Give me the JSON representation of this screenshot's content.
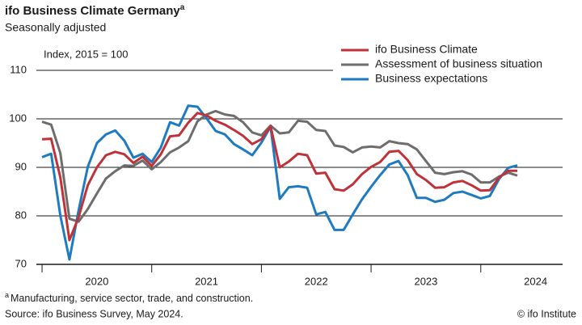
{
  "chart_data": {
    "type": "line",
    "title": "ifo Business Climate Germany",
    "footnote_marker": "a",
    "subtitle": "Seasonally adjusted",
    "y_label": "Index, 2015 = 100",
    "footnote": "Manufacturing, service sector, trade, and construction.",
    "source": "Source: ifo Business Survey, May 2024.",
    "credit": "© ifo Institute",
    "x": [
      2020,
      2020.083,
      2020.167,
      2020.25,
      2020.333,
      2020.417,
      2020.5,
      2020.583,
      2020.667,
      2020.75,
      2020.833,
      2020.917,
      2021,
      2021.083,
      2021.167,
      2021.25,
      2021.333,
      2021.417,
      2021.5,
      2021.583,
      2021.667,
      2021.75,
      2021.833,
      2021.917,
      2022,
      2022.083,
      2022.167,
      2022.25,
      2022.333,
      2022.417,
      2022.5,
      2022.583,
      2022.667,
      2022.75,
      2022.833,
      2022.917,
      2023,
      2023.083,
      2023.167,
      2023.25,
      2023.333,
      2023.417,
      2023.5,
      2023.583,
      2023.667,
      2023.75,
      2023.833,
      2023.917,
      2024,
      2024.083,
      2024.167,
      2024.25,
      2024.333
    ],
    "series": [
      {
        "name": "ifo Business Climate",
        "color": "#c0323a",
        "values": [
          95.8,
          95.9,
          87.9,
          75.0,
          79.7,
          86.3,
          90.0,
          92.5,
          93.2,
          92.7,
          90.9,
          92.2,
          90.3,
          92.7,
          96.4,
          96.6,
          99.2,
          101.2,
          100.7,
          99.6,
          98.8,
          97.7,
          96.5,
          94.8,
          95.8,
          98.5,
          90.0,
          91.2,
          92.8,
          92.5,
          88.7,
          88.9,
          85.5,
          85.2,
          86.5,
          88.6,
          90.1,
          91.1,
          93.2,
          93.4,
          91.5,
          88.6,
          87.4,
          85.8,
          85.9,
          86.9,
          87.2,
          86.3,
          85.2,
          85.3,
          87.9,
          89.3,
          89.3
        ]
      },
      {
        "name": "Assessment of business situation",
        "color": "#6d6d6d",
        "values": [
          99.4,
          98.8,
          92.9,
          79.4,
          78.8,
          81.4,
          84.6,
          87.7,
          89.2,
          90.4,
          90.3,
          91.4,
          89.6,
          91.1,
          93.1,
          94.1,
          95.4,
          99.5,
          100.9,
          101.6,
          100.9,
          100.6,
          99.3,
          97.2,
          96.6,
          98.6,
          97.0,
          97.2,
          99.6,
          99.4,
          97.7,
          97.5,
          94.5,
          94.2,
          93.1,
          94.1,
          94.3,
          94.1,
          95.4,
          95.0,
          94.8,
          93.7,
          91.3,
          88.9,
          88.6,
          89.0,
          89.2,
          88.5,
          86.9,
          86.9,
          88.1,
          88.9,
          88.3
        ]
      },
      {
        "name": "Business expectations",
        "color": "#1f7bc1",
        "values": [
          92.1,
          92.8,
          80.0,
          71.0,
          81.1,
          90.1,
          95.0,
          96.8,
          97.6,
          95.5,
          92.0,
          92.8,
          91.1,
          94.1,
          99.3,
          98.6,
          102.7,
          102.5,
          100.1,
          97.5,
          96.8,
          94.8,
          93.7,
          92.5,
          95.1,
          98.4,
          83.5,
          85.9,
          86.1,
          85.8,
          80.3,
          80.8,
          77.1,
          77.1,
          80.3,
          83.4,
          86.0,
          88.4,
          90.6,
          91.3,
          88.4,
          83.7,
          83.7,
          82.9,
          83.3,
          84.7,
          85.0,
          84.3,
          83.6,
          84.1,
          87.6,
          89.9,
          90.4
        ]
      }
    ],
    "xlim": [
      2019.963,
      2024.746
    ],
    "xticks": [
      {
        "value": 2020.5,
        "label": "2020"
      },
      {
        "value": 2021.5,
        "label": "2021"
      },
      {
        "value": 2022.5,
        "label": "2022"
      },
      {
        "value": 2023.5,
        "label": "2023"
      },
      {
        "value": 2024.5,
        "label": "2024"
      }
    ],
    "ylim": [
      70,
      110
    ],
    "yticks": [
      70,
      80,
      90,
      100,
      110
    ],
    "grid": true,
    "legend": "upper right"
  }
}
